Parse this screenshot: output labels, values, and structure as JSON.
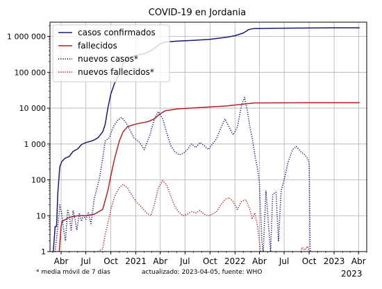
{
  "chart_data": {
    "type": "line",
    "title": "COVID-19 en Jordania",
    "xlabel": "",
    "ylabel": "",
    "y_scale": "log",
    "ylim": [
      1,
      2500000
    ],
    "xlim": [
      "2020-02-20",
      "2023-05-01"
    ],
    "grid": true,
    "legend_position": "top-left",
    "y_ticks": [
      {
        "value": 1,
        "label": "1"
      },
      {
        "value": 10,
        "label": "10"
      },
      {
        "value": 100,
        "label": "100"
      },
      {
        "value": 1000,
        "label": "1 000"
      },
      {
        "value": 10000,
        "label": "10 000"
      },
      {
        "value": 100000,
        "label": "100 000"
      },
      {
        "value": 1000000,
        "label": "1 000 000"
      }
    ],
    "x_ticks": [
      {
        "date": "2020-04-01",
        "label": "Abr"
      },
      {
        "date": "2020-07-01",
        "label": "Jul"
      },
      {
        "date": "2020-10-01",
        "label": "Oct"
      },
      {
        "date": "2021-01-01",
        "label": "2021"
      },
      {
        "date": "2021-04-01",
        "label": "Abr"
      },
      {
        "date": "2021-07-01",
        "label": "Jul"
      },
      {
        "date": "2021-10-01",
        "label": "Oct"
      },
      {
        "date": "2022-01-01",
        "label": "2022"
      },
      {
        "date": "2022-04-01",
        "label": "Abr"
      },
      {
        "date": "2022-07-01",
        "label": "Jul"
      },
      {
        "date": "2022-10-01",
        "label": "Oct"
      },
      {
        "date": "2023-01-01",
        "label": "2023"
      },
      {
        "date": "2023-04-01",
        "label": "Abr"
      }
    ],
    "x_year_label": "2023",
    "series": [
      {
        "name": "casos confirmados",
        "color": "#191970",
        "style": "solid",
        "points": [
          [
            "2020-03-03",
            1
          ],
          [
            "2020-03-10",
            5
          ],
          [
            "2020-03-15",
            5
          ],
          [
            "2020-03-20",
            45
          ],
          [
            "2020-03-27",
            230
          ],
          [
            "2020-04-03",
            320
          ],
          [
            "2020-04-15",
            400
          ],
          [
            "2020-05-01",
            450
          ],
          [
            "2020-05-15",
            620
          ],
          [
            "2020-06-01",
            730
          ],
          [
            "2020-06-15",
            970
          ],
          [
            "2020-07-01",
            1100
          ],
          [
            "2020-07-20",
            1200
          ],
          [
            "2020-08-01",
            1300
          ],
          [
            "2020-08-15",
            1500
          ],
          [
            "2020-09-01",
            2200
          ],
          [
            "2020-09-10",
            3500
          ],
          [
            "2020-09-20",
            10000
          ],
          [
            "2020-10-01",
            25000
          ],
          [
            "2020-10-15",
            50000
          ],
          [
            "2020-11-01",
            90000
          ],
          [
            "2020-11-15",
            170000
          ],
          [
            "2020-12-01",
            240000
          ],
          [
            "2020-12-20",
            280000
          ],
          [
            "2021-01-15",
            310000
          ],
          [
            "2021-02-01",
            330000
          ],
          [
            "2021-02-20",
            380000
          ],
          [
            "2021-03-10",
            470000
          ],
          [
            "2021-04-01",
            620000
          ],
          [
            "2021-04-20",
            700000
          ],
          [
            "2021-06-01",
            740000
          ],
          [
            "2021-08-01",
            780000
          ],
          [
            "2021-10-01",
            830000
          ],
          [
            "2021-12-01",
            950000
          ],
          [
            "2022-01-01",
            1050000
          ],
          [
            "2022-02-01",
            1250000
          ],
          [
            "2022-02-20",
            1550000
          ],
          [
            "2022-03-10",
            1650000
          ],
          [
            "2022-06-01",
            1690000
          ],
          [
            "2022-10-01",
            1720000
          ],
          [
            "2023-01-01",
            1740000
          ],
          [
            "2023-04-05",
            1746000
          ]
        ]
      },
      {
        "name": "fallecidos",
        "color": "#b22222",
        "style": "solid",
        "points": [
          [
            "2020-03-25",
            1
          ],
          [
            "2020-04-01",
            5
          ],
          [
            "2020-04-05",
            7
          ],
          [
            "2020-05-01",
            9
          ],
          [
            "2020-06-01",
            10
          ],
          [
            "2020-07-01",
            10
          ],
          [
            "2020-08-01",
            11
          ],
          [
            "2020-09-01",
            15
          ],
          [
            "2020-09-20",
            50
          ],
          [
            "2020-10-01",
            130
          ],
          [
            "2020-10-15",
            400
          ],
          [
            "2020-11-01",
            1200
          ],
          [
            "2020-11-15",
            2200
          ],
          [
            "2020-12-01",
            3000
          ],
          [
            "2020-12-20",
            3400
          ],
          [
            "2021-01-15",
            3800
          ],
          [
            "2021-02-15",
            4200
          ],
          [
            "2021-03-10",
            5000
          ],
          [
            "2021-04-01",
            7000
          ],
          [
            "2021-04-20",
            8500
          ],
          [
            "2021-06-01",
            9500
          ],
          [
            "2021-09-01",
            10500
          ],
          [
            "2021-12-01",
            11500
          ],
          [
            "2022-02-01",
            13000
          ],
          [
            "2022-03-15",
            14000
          ],
          [
            "2022-10-01",
            14100
          ],
          [
            "2023-04-05",
            14120
          ]
        ]
      },
      {
        "name": "nuevos casos*",
        "color": "#191970",
        "style": "dotted",
        "points": [
          [
            "2020-03-10",
            1
          ],
          [
            "2020-03-20",
            5
          ],
          [
            "2020-03-27",
            20
          ],
          [
            "2020-04-03",
            12
          ],
          [
            "2020-04-10",
            4
          ],
          [
            "2020-04-17",
            2
          ],
          [
            "2020-04-25",
            15
          ],
          [
            "2020-05-01",
            10
          ],
          [
            "2020-05-08",
            4
          ],
          [
            "2020-05-15",
            14
          ],
          [
            "2020-05-22",
            8
          ],
          [
            "2020-05-29",
            4
          ],
          [
            "2020-06-07",
            12
          ],
          [
            "2020-06-15",
            7
          ],
          [
            "2020-06-22",
            10
          ],
          [
            "2020-07-01",
            8
          ],
          [
            "2020-07-10",
            12
          ],
          [
            "2020-07-20",
            6
          ],
          [
            "2020-08-01",
            30
          ],
          [
            "2020-08-10",
            55
          ],
          [
            "2020-08-20",
            110
          ],
          [
            "2020-09-01",
            400
          ],
          [
            "2020-09-10",
            1200
          ],
          [
            "2020-09-25",
            1500
          ],
          [
            "2020-10-10",
            3000
          ],
          [
            "2020-10-25",
            4500
          ],
          [
            "2020-11-10",
            5500
          ],
          [
            "2020-11-25",
            4000
          ],
          [
            "2020-12-10",
            2500
          ],
          [
            "2020-12-25",
            1500
          ],
          [
            "2021-01-15",
            1100
          ],
          [
            "2021-02-01",
            700
          ],
          [
            "2021-02-20",
            1600
          ],
          [
            "2021-03-10",
            5000
          ],
          [
            "2021-03-25",
            8000
          ],
          [
            "2021-04-10",
            5000
          ],
          [
            "2021-04-25",
            2000
          ],
          [
            "2021-05-10",
            900
          ],
          [
            "2021-05-25",
            600
          ],
          [
            "2021-06-10",
            500
          ],
          [
            "2021-06-25",
            550
          ],
          [
            "2021-07-10",
            700
          ],
          [
            "2021-07-25",
            1000
          ],
          [
            "2021-08-10",
            800
          ],
          [
            "2021-08-25",
            1100
          ],
          [
            "2021-09-10",
            900
          ],
          [
            "2021-09-25",
            700
          ],
          [
            "2021-10-10",
            1000
          ],
          [
            "2021-10-25",
            1400
          ],
          [
            "2021-11-10",
            2800
          ],
          [
            "2021-11-25",
            5000
          ],
          [
            "2021-12-10",
            3000
          ],
          [
            "2021-12-25",
            1800
          ],
          [
            "2022-01-10",
            3000
          ],
          [
            "2022-01-25",
            12000
          ],
          [
            "2022-02-05",
            20000
          ],
          [
            "2022-02-15",
            9000
          ],
          [
            "2022-02-25",
            3000
          ],
          [
            "2022-03-05",
            1500
          ],
          [
            "2022-03-15",
            500
          ],
          [
            "2022-03-25",
            200
          ],
          [
            "2022-04-01",
            80
          ],
          [
            "2022-04-10",
            2
          ],
          [
            "2022-04-15",
            1
          ],
          [
            "2022-04-25",
            50
          ],
          [
            "2022-05-05",
            5
          ],
          [
            "2022-05-12",
            1
          ],
          [
            "2022-05-20",
            40
          ],
          [
            "2022-06-01",
            45
          ],
          [
            "2022-06-10",
            2
          ],
          [
            "2022-06-20",
            50
          ],
          [
            "2022-07-01",
            100
          ],
          [
            "2022-07-15",
            300
          ],
          [
            "2022-08-01",
            700
          ],
          [
            "2022-08-15",
            850
          ],
          [
            "2022-09-01",
            600
          ],
          [
            "2022-09-15",
            500
          ],
          [
            "2022-09-25",
            400
          ],
          [
            "2022-10-01",
            300
          ],
          [
            "2022-10-05",
            1
          ]
        ]
      },
      {
        "name": "nuevos fallecidos*",
        "color": "#b22222",
        "style": "dotted",
        "points": [
          [
            "2020-08-15",
            1
          ],
          [
            "2020-09-01",
            1.2
          ],
          [
            "2020-09-10",
            3
          ],
          [
            "2020-09-20",
            6
          ],
          [
            "2020-10-01",
            15
          ],
          [
            "2020-10-15",
            35
          ],
          [
            "2020-11-01",
            60
          ],
          [
            "2020-11-15",
            75
          ],
          [
            "2020-12-01",
            60
          ],
          [
            "2020-12-15",
            40
          ],
          [
            "2021-01-01",
            25
          ],
          [
            "2021-01-20",
            18
          ],
          [
            "2021-02-10",
            12
          ],
          [
            "2021-02-25",
            10
          ],
          [
            "2021-03-10",
            20
          ],
          [
            "2021-03-25",
            60
          ],
          [
            "2021-04-10",
            95
          ],
          [
            "2021-04-25",
            70
          ],
          [
            "2021-05-10",
            35
          ],
          [
            "2021-05-25",
            18
          ],
          [
            "2021-06-10",
            12
          ],
          [
            "2021-06-25",
            10
          ],
          [
            "2021-07-10",
            11
          ],
          [
            "2021-07-25",
            13
          ],
          [
            "2021-08-10",
            12
          ],
          [
            "2021-08-25",
            14
          ],
          [
            "2021-09-10",
            11
          ],
          [
            "2021-09-25",
            10
          ],
          [
            "2021-10-10",
            11
          ],
          [
            "2021-10-25",
            13
          ],
          [
            "2021-11-10",
            20
          ],
          [
            "2021-11-25",
            28
          ],
          [
            "2021-12-10",
            32
          ],
          [
            "2021-12-25",
            25
          ],
          [
            "2022-01-10",
            15
          ],
          [
            "2022-01-25",
            25
          ],
          [
            "2022-02-10",
            28
          ],
          [
            "2022-02-25",
            15
          ],
          [
            "2022-03-05",
            8
          ],
          [
            "2022-03-15",
            12
          ],
          [
            "2022-03-25",
            5
          ],
          [
            "2022-04-01",
            2
          ],
          [
            "2022-04-05",
            1
          ]
        ]
      },
      {
        "name": "",
        "color": "#b22222",
        "style": "dotted",
        "points": [
          [
            "2022-09-01",
            1
          ],
          [
            "2022-09-05",
            1.3
          ],
          [
            "2022-09-15",
            1.1
          ],
          [
            "2022-09-25",
            1.4
          ],
          [
            "2022-10-01",
            1
          ]
        ]
      }
    ]
  },
  "footer": {
    "note": "* media móvil de 7 días",
    "source": "actualizado: 2023-04-05, fuente: WHO"
  }
}
